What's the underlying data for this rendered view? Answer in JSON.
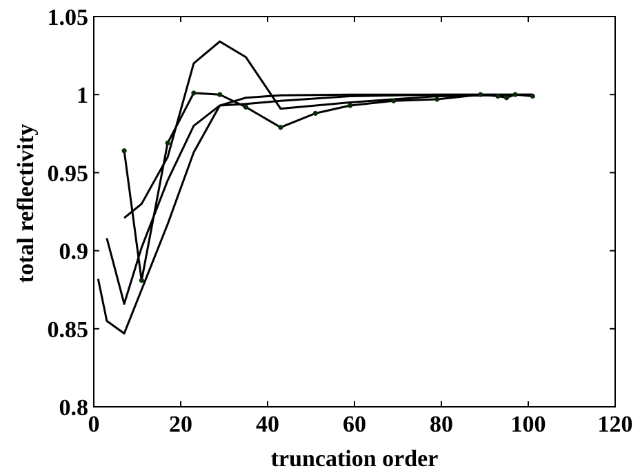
{
  "chart_data": {
    "type": "line",
    "title": "",
    "xlabel": "truncation order",
    "ylabel": "total reflectivity",
    "xlim": [
      0,
      120
    ],
    "ylim": [
      0.8,
      1.05
    ],
    "xticks": [
      0,
      20,
      40,
      60,
      80,
      100,
      120
    ],
    "yticks": [
      0.8,
      0.85,
      0.9,
      0.95,
      1,
      1.05
    ],
    "xtick_labels": [
      "0",
      "20",
      "40",
      "60",
      "80",
      "100",
      "120"
    ],
    "ytick_labels": [
      "0.8",
      "0.85",
      "0.9",
      "0.95",
      "1",
      "1.05"
    ],
    "grid": false,
    "line_color": "#000000",
    "marker_color": "#0a2a0a",
    "series": [
      {
        "markers": false,
        "x": [
          1,
          3,
          7,
          11,
          17,
          23,
          29,
          35,
          43,
          59,
          79,
          101
        ],
        "y": [
          0.882,
          0.855,
          0.847,
          0.875,
          0.917,
          0.963,
          0.993,
          0.994,
          0.996,
          0.999,
          1.0,
          1.0
        ]
      },
      {
        "markers": false,
        "x": [
          3,
          7,
          11,
          17,
          23,
          29,
          35,
          43,
          59,
          79,
          101
        ],
        "y": [
          0.908,
          0.866,
          0.902,
          0.945,
          0.98,
          0.993,
          0.998,
          0.9995,
          1.0,
          1.0,
          1.0
        ]
      },
      {
        "markers": false,
        "x": [
          7,
          11,
          17,
          23,
          29,
          35,
          43,
          59,
          79,
          101
        ],
        "y": [
          0.921,
          0.93,
          0.96,
          1.02,
          1.034,
          1.024,
          0.991,
          0.995,
          0.999,
          1.0
        ]
      },
      {
        "markers": true,
        "x": [
          7,
          11,
          17,
          23,
          29,
          35,
          43,
          51,
          59,
          69,
          79,
          89,
          93,
          95,
          97,
          101
        ],
        "y": [
          0.964,
          0.881,
          0.969,
          1.001,
          1.0,
          0.992,
          0.979,
          0.988,
          0.993,
          0.996,
          0.997,
          1.0,
          0.999,
          0.998,
          1.0,
          0.999
        ]
      }
    ]
  }
}
